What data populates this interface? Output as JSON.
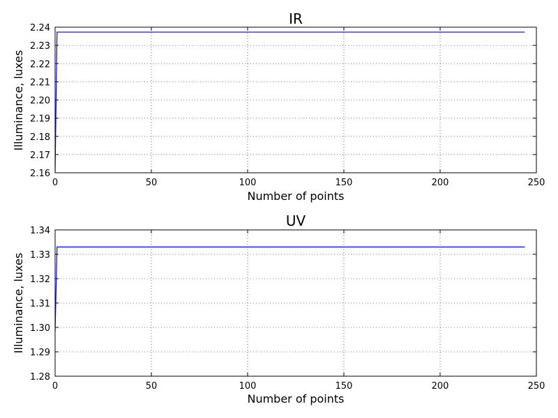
{
  "chart_data": [
    {
      "type": "line",
      "title": "IR",
      "xlabel": "Number of points",
      "ylabel": "Illuminance, luxes",
      "xlim": [
        0,
        250
      ],
      "ylim": [
        2.16,
        2.24
      ],
      "xticks": [
        "0",
        "50",
        "100",
        "150",
        "200",
        "250"
      ],
      "yticks": [
        "2.16",
        "2.17",
        "2.18",
        "2.19",
        "2.20",
        "2.21",
        "2.22",
        "2.23",
        "2.24"
      ],
      "grid": true,
      "grid_style": "dotted",
      "series": [
        {
          "color": "#0000ff",
          "x": [
            0,
            1,
            244
          ],
          "y": [
            2.16,
            2.2373,
            2.2373
          ]
        }
      ]
    },
    {
      "type": "line",
      "title": "UV",
      "xlabel": "Number of points",
      "ylabel": "Illuminance, luxes",
      "xlim": [
        0,
        250
      ],
      "ylim": [
        1.28,
        1.34
      ],
      "xticks": [
        "0",
        "50",
        "100",
        "150",
        "200",
        "250"
      ],
      "yticks": [
        "1.28",
        "1.29",
        "1.30",
        "1.31",
        "1.32",
        "1.33",
        "1.34"
      ],
      "grid": true,
      "grid_style": "dotted",
      "series": [
        {
          "color": "#0000ff",
          "x": [
            0,
            1,
            244
          ],
          "y": [
            1.298,
            1.333,
            1.333
          ]
        }
      ]
    }
  ]
}
